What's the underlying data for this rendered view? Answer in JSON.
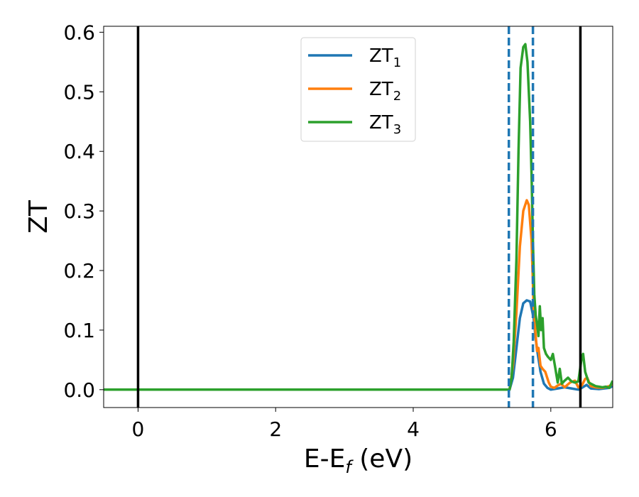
{
  "chart_data": {
    "type": "line",
    "xlabel_main": "E-E",
    "xlabel_sub": "f",
    "xlabel_units": " (eV)",
    "ylabel": "ZT",
    "xlim": [
      -0.5,
      6.9
    ],
    "ylim": [
      -0.03,
      0.61
    ],
    "xticks": [
      0,
      2,
      4,
      6
    ],
    "xtick_labels": [
      "0",
      "2",
      "4",
      "6"
    ],
    "yticks": [
      0.0,
      0.1,
      0.2,
      0.3,
      0.4,
      0.5,
      0.6
    ],
    "ytick_labels": [
      "0.0",
      "0.1",
      "0.2",
      "0.3",
      "0.4",
      "0.5",
      "0.6"
    ],
    "grid": false,
    "legend_position": "top-center",
    "reference_lines": {
      "solid": [
        0.0,
        6.43
      ],
      "dashed": [
        5.39,
        5.74
      ],
      "solid_color": "#000000",
      "dashed_color": "#1f77b4"
    },
    "series": [
      {
        "name_main": "ZT",
        "name_sub": "1",
        "color": "#1f77b4",
        "x": [
          -0.5,
          5.35,
          5.4,
          5.45,
          5.5,
          5.55,
          5.6,
          5.65,
          5.7,
          5.75,
          5.78,
          5.81,
          5.85,
          5.9,
          5.95,
          6.0,
          6.1,
          6.2,
          6.3,
          6.4,
          6.45,
          6.52,
          6.58,
          6.7,
          6.85,
          6.9
        ],
        "y": [
          0.0,
          0.0,
          0.0,
          0.02,
          0.07,
          0.12,
          0.145,
          0.15,
          0.148,
          0.12,
          0.085,
          0.06,
          0.03,
          0.01,
          0.003,
          0.0,
          0.002,
          0.004,
          0.002,
          0.0,
          0.003,
          0.008,
          0.002,
          0.001,
          0.003,
          0.006
        ]
      },
      {
        "name_main": "ZT",
        "name_sub": "2",
        "color": "#ff7f0e",
        "x": [
          -0.5,
          5.35,
          5.4,
          5.45,
          5.5,
          5.55,
          5.6,
          5.65,
          5.68,
          5.72,
          5.75,
          5.78,
          5.8,
          5.82,
          5.85,
          5.88,
          5.92,
          5.97,
          6.0,
          6.05,
          6.1,
          6.15,
          6.2,
          6.28,
          6.35,
          6.4,
          6.45,
          6.5,
          6.53,
          6.58,
          6.65,
          6.75,
          6.85,
          6.9
        ],
        "y": [
          0.0,
          0.0,
          0.0,
          0.04,
          0.13,
          0.24,
          0.3,
          0.318,
          0.31,
          0.25,
          0.14,
          0.09,
          0.065,
          0.07,
          0.04,
          0.035,
          0.03,
          0.012,
          0.005,
          0.003,
          0.007,
          0.01,
          0.004,
          0.012,
          0.015,
          0.004,
          0.007,
          0.018,
          0.02,
          0.006,
          0.004,
          0.003,
          0.006,
          0.01
        ]
      },
      {
        "name_main": "ZT",
        "name_sub": "3",
        "color": "#2ca02c",
        "x": [
          -0.5,
          5.35,
          5.4,
          5.43,
          5.46,
          5.5,
          5.53,
          5.56,
          5.6,
          5.63,
          5.66,
          5.7,
          5.72,
          5.74,
          5.76,
          5.78,
          5.8,
          5.82,
          5.84,
          5.86,
          5.88,
          5.9,
          5.93,
          5.96,
          6.0,
          6.03,
          6.06,
          6.1,
          6.13,
          6.16,
          6.2,
          6.25,
          6.3,
          6.35,
          6.4,
          6.45,
          6.47,
          6.5,
          6.55,
          6.6,
          6.65,
          6.7,
          6.75,
          6.8,
          6.85,
          6.9
        ],
        "y": [
          0.0,
          0.0,
          0.0,
          0.02,
          0.08,
          0.22,
          0.4,
          0.54,
          0.575,
          0.58,
          0.55,
          0.45,
          0.36,
          0.25,
          0.16,
          0.125,
          0.11,
          0.09,
          0.14,
          0.1,
          0.12,
          0.07,
          0.06,
          0.055,
          0.05,
          0.06,
          0.04,
          0.012,
          0.035,
          0.01,
          0.015,
          0.02,
          0.014,
          0.012,
          0.014,
          0.055,
          0.06,
          0.03,
          0.012,
          0.009,
          0.006,
          0.005,
          0.004,
          0.005,
          0.003,
          0.015
        ]
      }
    ]
  }
}
